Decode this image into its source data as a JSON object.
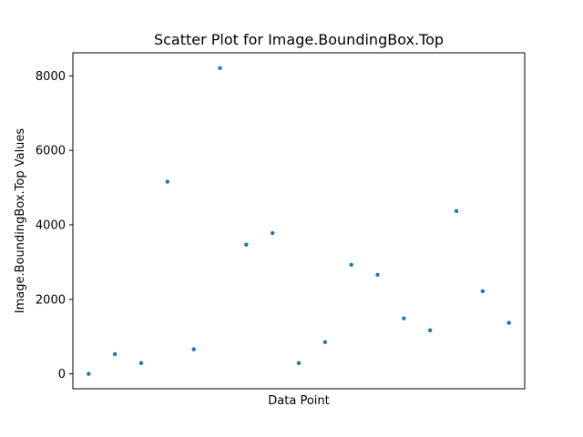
{
  "chart_data": {
    "type": "scatter",
    "title": "Scatter Plot for Image.BoundingBox.Top",
    "xlabel": "Data Point",
    "ylabel": "Image.BoundingBox.Top Values",
    "x_ticks_visible": false,
    "grid": false,
    "legend": "none",
    "point_color": "#1f77b4",
    "x": [
      0,
      1,
      2,
      3,
      4,
      5,
      6,
      7,
      8,
      9,
      10,
      11,
      12,
      13,
      14,
      15,
      16
    ],
    "y": [
      0,
      530,
      290,
      5160,
      660,
      8210,
      3470,
      3780,
      290,
      850,
      2930,
      2660,
      1490,
      1170,
      4370,
      2220,
      1370
    ],
    "xlim": [
      -0.6,
      16.6
    ],
    "ylim": [
      -400,
      8620
    ],
    "y_ticks": [
      0,
      2000,
      4000,
      6000,
      8000
    ],
    "y_tick_labels": [
      "0",
      "2000",
      "4000",
      "6000",
      "8000"
    ]
  }
}
